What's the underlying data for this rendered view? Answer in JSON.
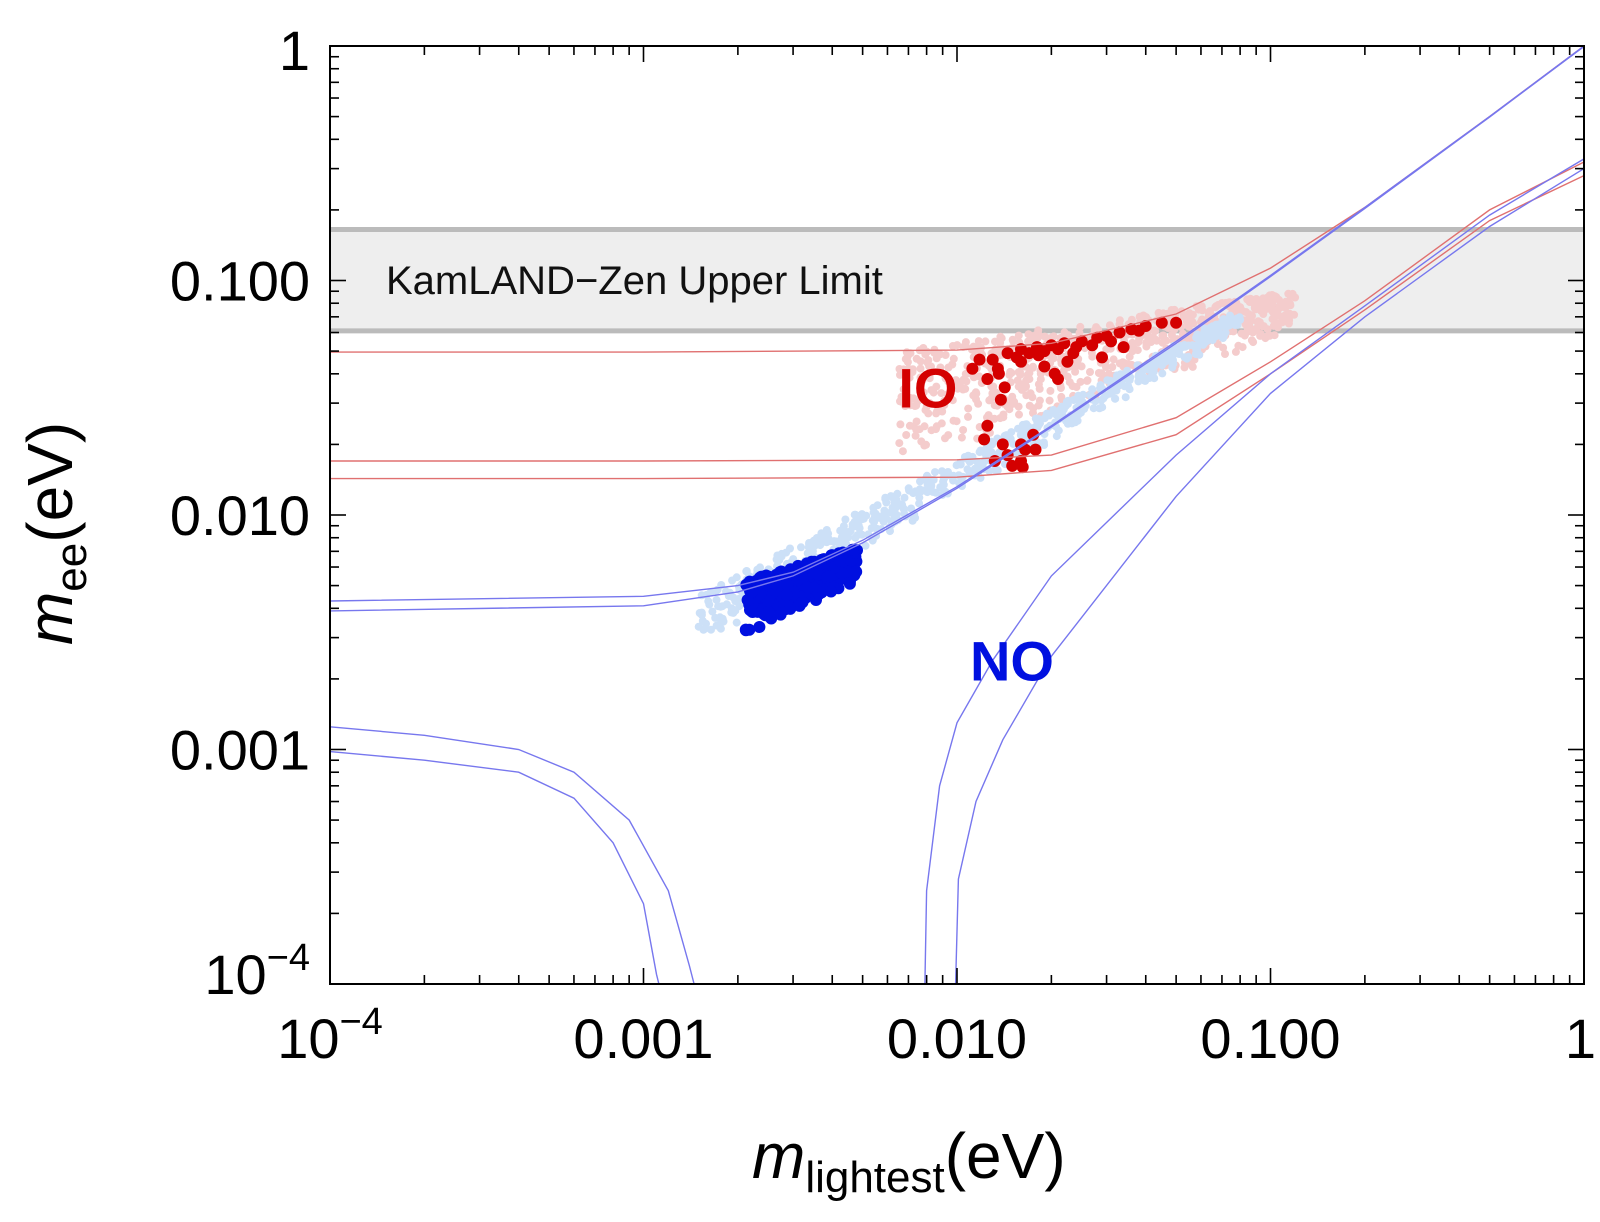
{
  "chart_data": {
    "type": "scatter",
    "xscale": "log",
    "yscale": "log",
    "xlim": [
      0.0001,
      1
    ],
    "ylim": [
      0.0001,
      1
    ],
    "x_ticks": [
      {
        "value": 0.0001,
        "label_base": "10",
        "label_exp": "−4"
      },
      {
        "value": 0.001,
        "label": "0.001"
      },
      {
        "value": 0.01,
        "label": "0.010"
      },
      {
        "value": 0.1,
        "label": "0.100"
      },
      {
        "value": 1,
        "label": "1"
      }
    ],
    "y_ticks": [
      {
        "value": 0.0001,
        "label_base": "10",
        "label_exp": "−4"
      },
      {
        "value": 0.001,
        "label": "0.001"
      },
      {
        "value": 0.01,
        "label": "0.010"
      },
      {
        "value": 0.1,
        "label": "0.100"
      },
      {
        "value": 1,
        "label": "1"
      }
    ],
    "xlabel": {
      "main": "m",
      "sub": "lightest",
      "unit": "(eV)"
    },
    "ylabel": {
      "main": "m",
      "sub": "ee",
      "unit": "(eV)"
    },
    "band": {
      "label": "KamLAND−Zen Upper Limit",
      "y_low": 0.061,
      "y_high": 0.165,
      "color": "#eeeeee",
      "edge_color": "#bbbbbb"
    },
    "annotations": [
      {
        "text": "IO",
        "x": 0.0065,
        "y": 0.035,
        "color": "#d40000"
      },
      {
        "text": "NO",
        "x": 0.011,
        "y": 0.0024,
        "color": "#0010e0"
      }
    ],
    "colors": {
      "io": "#d40000",
      "io_light": "#f4cccc",
      "no": "#0010e0",
      "no_light": "#cce0f7",
      "io_line": "#e07070",
      "no_line": "#7777ee"
    },
    "series": [
      {
        "name": "IO-allowed-upper",
        "kind": "line",
        "color": "#e07070",
        "points": [
          [
            0.0001,
            0.0495
          ],
          [
            0.001,
            0.0495
          ],
          [
            0.01,
            0.0505
          ],
          [
            0.02,
            0.054
          ],
          [
            0.05,
            0.072
          ],
          [
            0.1,
            0.113
          ],
          [
            0.2,
            0.205
          ],
          [
            0.5,
            0.5
          ],
          [
            1,
            1
          ]
        ]
      },
      {
        "name": "IO-allowed-lower-1",
        "kind": "line",
        "color": "#e07070",
        "points": [
          [
            0.0001,
            0.017
          ],
          [
            0.001,
            0.017
          ],
          [
            0.01,
            0.0172
          ],
          [
            0.02,
            0.018
          ],
          [
            0.05,
            0.026
          ],
          [
            0.1,
            0.045
          ],
          [
            0.2,
            0.082
          ],
          [
            0.5,
            0.2
          ],
          [
            1,
            0.32
          ]
        ]
      },
      {
        "name": "IO-allowed-lower-2",
        "kind": "line",
        "color": "#e07070",
        "points": [
          [
            0.0001,
            0.0143
          ],
          [
            0.001,
            0.0143
          ],
          [
            0.01,
            0.0145
          ],
          [
            0.02,
            0.0155
          ],
          [
            0.05,
            0.022
          ],
          [
            0.1,
            0.04
          ],
          [
            0.2,
            0.075
          ],
          [
            0.5,
            0.18
          ],
          [
            1,
            0.28
          ]
        ]
      },
      {
        "name": "NO-allowed-upper-1",
        "kind": "line",
        "color": "#7777ee",
        "points": [
          [
            0.0001,
            0.0043
          ],
          [
            0.001,
            0.0045
          ],
          [
            0.002,
            0.005
          ],
          [
            0.003,
            0.0057
          ],
          [
            0.005,
            0.0078
          ],
          [
            0.01,
            0.0132
          ],
          [
            0.02,
            0.024
          ],
          [
            0.05,
            0.055
          ],
          [
            0.1,
            0.105
          ],
          [
            0.2,
            0.205
          ],
          [
            0.5,
            0.5
          ],
          [
            1,
            1
          ]
        ]
      },
      {
        "name": "NO-allowed-upper-2",
        "kind": "line",
        "color": "#7777ee",
        "points": [
          [
            0.0001,
            0.0039
          ],
          [
            0.001,
            0.0041
          ],
          [
            0.002,
            0.0047
          ],
          [
            0.003,
            0.0055
          ],
          [
            0.005,
            0.0076
          ],
          [
            0.01,
            0.013
          ],
          [
            0.02,
            0.0237
          ],
          [
            0.05,
            0.054
          ],
          [
            0.1,
            0.104
          ],
          [
            0.2,
            0.203
          ],
          [
            0.5,
            0.498
          ],
          [
            1,
            0.995
          ]
        ]
      },
      {
        "name": "NO-allowed-lower-left-1",
        "kind": "line",
        "color": "#7777ee",
        "points": [
          [
            0.0001,
            0.00125
          ],
          [
            0.0002,
            0.00115
          ],
          [
            0.0004,
            0.001
          ],
          [
            0.0006,
            0.0008
          ],
          [
            0.0009,
            0.0005
          ],
          [
            0.0012,
            0.00025
          ],
          [
            0.0014,
            0.00012
          ],
          [
            0.00145,
            0.0001
          ]
        ]
      },
      {
        "name": "NO-allowed-lower-left-2",
        "kind": "line",
        "color": "#7777ee",
        "points": [
          [
            0.0001,
            0.00098
          ],
          [
            0.0002,
            0.0009
          ],
          [
            0.0004,
            0.0008
          ],
          [
            0.0006,
            0.00062
          ],
          [
            0.0008,
            0.0004
          ],
          [
            0.001,
            0.00022
          ],
          [
            0.0011,
            0.00011
          ],
          [
            0.00112,
            0.0001
          ]
        ]
      },
      {
        "name": "NO-allowed-lower-right-1",
        "kind": "line",
        "color": "#7777ee",
        "points": [
          [
            0.0079,
            0.0001
          ],
          [
            0.008,
            0.00025
          ],
          [
            0.0088,
            0.0007
          ],
          [
            0.01,
            0.0013
          ],
          [
            0.013,
            0.0024
          ],
          [
            0.02,
            0.0055
          ],
          [
            0.05,
            0.018
          ],
          [
            0.1,
            0.04
          ],
          [
            0.2,
            0.078
          ],
          [
            0.5,
            0.19
          ],
          [
            1,
            0.33
          ]
        ]
      },
      {
        "name": "NO-allowed-lower-right-2",
        "kind": "line",
        "color": "#7777ee",
        "points": [
          [
            0.0099,
            0.0001
          ],
          [
            0.0101,
            0.00028
          ],
          [
            0.0115,
            0.0006
          ],
          [
            0.014,
            0.0011
          ],
          [
            0.02,
            0.0025
          ],
          [
            0.05,
            0.012
          ],
          [
            0.1,
            0.033
          ],
          [
            0.2,
            0.07
          ],
          [
            0.5,
            0.17
          ],
          [
            1,
            0.3
          ]
        ]
      },
      {
        "name": "IO-light-scatter",
        "kind": "scatter",
        "color": "#f4cccc",
        "size": 4,
        "count": 700,
        "region": {
          "x": [
            0.0065,
            0.12
          ],
          "y_lower": [
            0.016,
            0.06
          ],
          "y_upper": [
            0.05,
            0.09
          ]
        }
      },
      {
        "name": "NO-light-scatter",
        "kind": "scatter",
        "color": "#cce0f7",
        "size": 4,
        "count": 600,
        "region": {
          "x": [
            0.0015,
            0.08
          ],
          "y_lower": [
            0.0028,
            0.06
          ],
          "y_upper": [
            0.0045,
            0.075
          ]
        }
      },
      {
        "name": "IO-dark-scatter",
        "kind": "scatter",
        "color": "#d40000",
        "size": 6,
        "points": [
          [
            0.0145,
            0.049
          ],
          [
            0.016,
            0.051
          ],
          [
            0.018,
            0.052
          ],
          [
            0.02,
            0.053
          ],
          [
            0.022,
            0.054
          ],
          [
            0.025,
            0.055
          ],
          [
            0.028,
            0.057
          ],
          [
            0.03,
            0.058
          ],
          [
            0.033,
            0.06
          ],
          [
            0.036,
            0.062
          ],
          [
            0.04,
            0.064
          ],
          [
            0.045,
            0.066
          ],
          [
            0.05,
            0.066
          ],
          [
            0.0155,
            0.047
          ],
          [
            0.017,
            0.049
          ],
          [
            0.019,
            0.05
          ],
          [
            0.021,
            0.051
          ],
          [
            0.024,
            0.052
          ],
          [
            0.027,
            0.053
          ],
          [
            0.013,
            0.046
          ],
          [
            0.0135,
            0.042
          ],
          [
            0.0125,
            0.038
          ],
          [
            0.0142,
            0.035
          ],
          [
            0.0138,
            0.031
          ],
          [
            0.0125,
            0.024
          ],
          [
            0.0122,
            0.021
          ],
          [
            0.014,
            0.02
          ],
          [
            0.0145,
            0.018
          ],
          [
            0.016,
            0.017
          ],
          [
            0.0162,
            0.016
          ],
          [
            0.015,
            0.0162
          ],
          [
            0.0132,
            0.017
          ],
          [
            0.0165,
            0.019
          ],
          [
            0.0178,
            0.019
          ],
          [
            0.0175,
            0.022
          ],
          [
            0.016,
            0.02
          ],
          [
            0.019,
            0.043
          ],
          [
            0.0205,
            0.04
          ],
          [
            0.021,
            0.038
          ],
          [
            0.0225,
            0.045
          ],
          [
            0.029,
            0.047
          ],
          [
            0.034,
            0.052
          ],
          [
            0.016,
            0.045
          ],
          [
            0.0118,
            0.046
          ],
          [
            0.0112,
            0.042
          ],
          [
            0.0136,
            0.04
          ],
          [
            0.0182,
            0.048
          ],
          [
            0.0235,
            0.049
          ],
          [
            0.031,
            0.055
          ],
          [
            0.038,
            0.061
          ]
        ]
      },
      {
        "name": "NO-dark-scatter",
        "kind": "scatter",
        "color": "#0010e0",
        "size": 6,
        "count": 260,
        "region": {
          "x": [
            0.0021,
            0.0048
          ],
          "y_lower": [
            0.0031,
            0.0052
          ],
          "y_upper": [
            0.0052,
            0.0073
          ]
        }
      }
    ]
  }
}
